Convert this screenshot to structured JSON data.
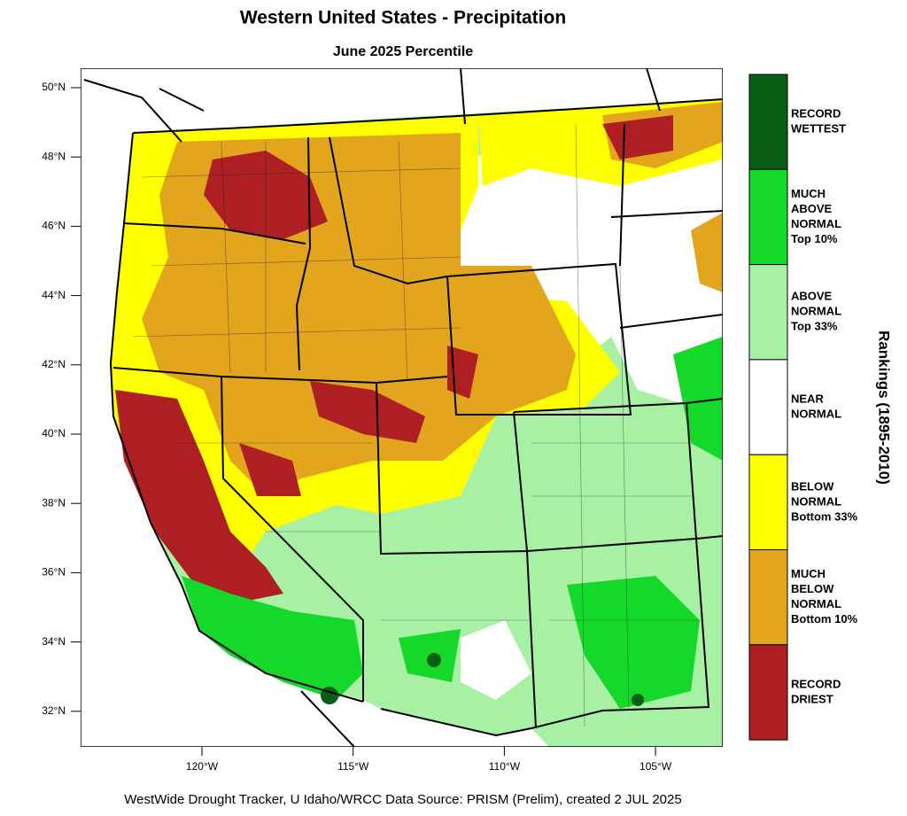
{
  "header": {
    "title": "Western United States - Precipitation",
    "subtitle": "June 2025 Percentile"
  },
  "map": {
    "lat_labels": [
      "50°N",
      "48°N",
      "46°N",
      "44°N",
      "42°N",
      "40°N",
      "38°N",
      "36°N",
      "34°N",
      "32°N"
    ],
    "lon_labels": [
      "120°W",
      "115°W",
      "110°W",
      "105°W"
    ]
  },
  "legend": {
    "title": "Rankings (1895-2010)",
    "items": [
      {
        "lines": [
          "RECORD",
          "WETTEST"
        ],
        "color": "#0b5e16"
      },
      {
        "lines": [
          "MUCH",
          "ABOVE",
          "NORMAL",
          "Top 10%"
        ],
        "color": "#14d92a"
      },
      {
        "lines": [
          "ABOVE",
          "NORMAL",
          "Top 33%"
        ],
        "color": "#a8f0a4"
      },
      {
        "lines": [
          "NEAR",
          "NORMAL"
        ],
        "color": "#ffffff"
      },
      {
        "lines": [
          "BELOW",
          "NORMAL",
          "Bottom 33%"
        ],
        "color": "#ffff00"
      },
      {
        "lines": [
          "MUCH",
          "BELOW",
          "NORMAL",
          "Bottom 10%"
        ],
        "color": "#e3a41e"
      },
      {
        "lines": [
          "RECORD",
          "DRIEST"
        ],
        "color": "#ad1f22"
      }
    ]
  },
  "footer": "WestWide Drought Tracker, U Idaho/WRCC Data Source: PRISM (Prelim), created  2 JUL 2025"
}
